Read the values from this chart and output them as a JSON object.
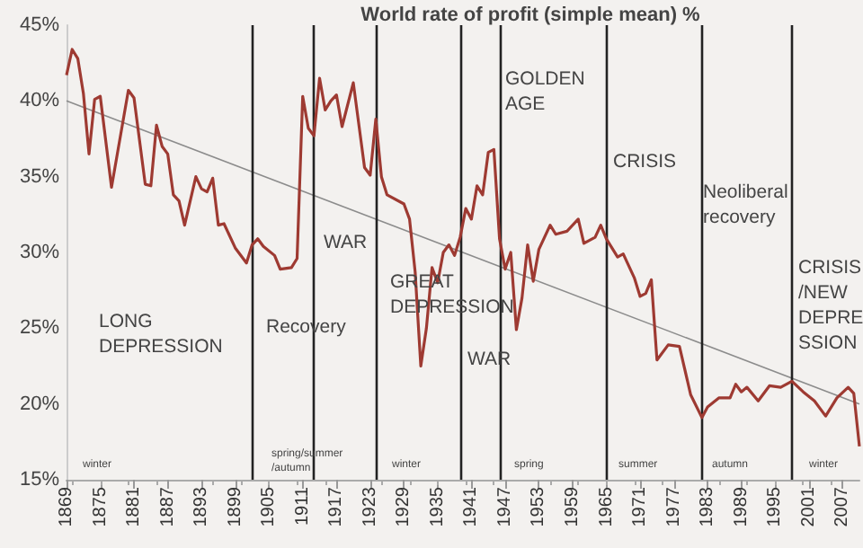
{
  "chart_data": {
    "type": "line",
    "title": "World rate of profit (simple mean) %",
    "xlim": [
      1869,
      2010
    ],
    "xticks": [
      1869,
      1875,
      1881,
      1887,
      1893,
      1899,
      1905,
      1911,
      1917,
      1923,
      1929,
      1935,
      1941,
      1947,
      1953,
      1959,
      1965,
      1971,
      1977,
      1983,
      1989,
      1995,
      2001,
      2007
    ],
    "ylim": [
      15,
      45
    ],
    "yticks": [
      {
        "value": 15,
        "label": "15%"
      },
      {
        "value": 20,
        "label": "20%"
      },
      {
        "value": 25,
        "label": "25%"
      },
      {
        "value": 30,
        "label": "30%"
      },
      {
        "value": 35,
        "label": "35%"
      },
      {
        "value": 40,
        "label": "40%"
      },
      {
        "value": 45,
        "label": "45%"
      }
    ],
    "marker": "none",
    "series": [
      {
        "color": "#9e3a32",
        "x": [
          1869,
          1870,
          1871,
          1872,
          1873,
          1874,
          1875,
          1877,
          1880,
          1881,
          1883,
          1884,
          1885,
          1886,
          1887,
          1888,
          1889,
          1890,
          1892,
          1893,
          1894,
          1895,
          1896,
          1897,
          1899,
          1901,
          1902,
          1903,
          1904,
          1906,
          1907,
          1909,
          1910,
          1911,
          1912,
          1913,
          1914,
          1915,
          1916,
          1917,
          1918,
          1920,
          1922,
          1923,
          1924,
          1925,
          1926,
          1929,
          1930,
          1931,
          1932,
          1933,
          1934,
          1935,
          1936,
          1937,
          1938,
          1939,
          1940,
          1941,
          1942,
          1943,
          1944,
          1945,
          1946,
          1947,
          1948,
          1949,
          1950,
          1951,
          1952,
          1953,
          1955,
          1956,
          1958,
          1960,
          1961,
          1963,
          1964,
          1965,
          1967,
          1968,
          1970,
          1971,
          1972,
          1973,
          1974,
          1976,
          1978,
          1980,
          1982,
          1983,
          1985,
          1987,
          1988,
          1989,
          1990,
          1992,
          1994,
          1996,
          1998,
          2000,
          2002,
          2004,
          2006,
          2008,
          2009,
          2010
        ],
        "values": [
          41.7,
          43.4,
          42.8,
          40.5,
          36.5,
          40.1,
          40.3,
          34.3,
          40.7,
          40.2,
          34.5,
          34.4,
          38.4,
          37.0,
          36.5,
          33.8,
          33.4,
          31.8,
          35.0,
          34.2,
          34.0,
          34.9,
          31.8,
          31.9,
          30.3,
          29.3,
          30.5,
          30.9,
          30.4,
          29.8,
          28.9,
          29.0,
          29.6,
          40.3,
          38.2,
          37.7,
          41.5,
          39.4,
          40.0,
          40.4,
          38.3,
          41.2,
          35.6,
          35.1,
          38.8,
          35.0,
          33.8,
          33.2,
          32.2,
          28.7,
          22.5,
          25.0,
          29.0,
          28.0,
          30.0,
          30.5,
          29.8,
          31.0,
          32.9,
          32.2,
          34.4,
          33.8,
          36.6,
          36.8,
          30.9,
          28.9,
          30.0,
          24.9,
          27.0,
          30.5,
          28.1,
          30.2,
          31.8,
          31.2,
          31.4,
          32.2,
          30.6,
          31.0,
          31.8,
          30.9,
          29.7,
          29.9,
          28.3,
          27.1,
          27.3,
          28.2,
          22.9,
          23.9,
          23.8,
          20.6,
          19.1,
          19.8,
          20.4,
          20.4,
          21.3,
          20.8,
          21.1,
          20.2,
          21.2,
          21.1,
          21.5,
          20.8,
          20.2,
          19.2,
          20.4,
          21.1,
          20.7,
          17.2
        ]
      },
      {
        "type": "line",
        "color": "#8c8c8c",
        "x": [
          1869,
          2010
        ],
        "values": [
          40,
          20
        ]
      }
    ],
    "ref_lines": [
      {
        "axis": "x",
        "value": 1902,
        "color": "#222222"
      },
      {
        "axis": "x",
        "value": 1913,
        "color": "#222222"
      },
      {
        "axis": "x",
        "value": 1924,
        "color": "#222222"
      },
      {
        "axis": "x",
        "value": 1939,
        "color": "#222222"
      },
      {
        "axis": "x",
        "value": 1946,
        "color": "#222222"
      },
      {
        "axis": "x",
        "value": 1965,
        "color": "#222222"
      },
      {
        "axis": "x",
        "value": 1982,
        "color": "#222222"
      },
      {
        "axis": "x",
        "value": 1998,
        "color": "#222222"
      }
    ],
    "annotations": [
      "LONG\nDEPRESSION",
      "Recovery",
      "WAR",
      "GREAT\nDEPRESSION",
      "WAR",
      "GOLDEN\nAGE",
      "CRISIS",
      "Neoliberal\nrecovery",
      "CRISIS\n/NEW\nDEPRE\nSSION",
      "winter",
      "spring/summer\n/autumn",
      "winter",
      "spring",
      "summer",
      "autumn",
      "winter"
    ]
  }
}
